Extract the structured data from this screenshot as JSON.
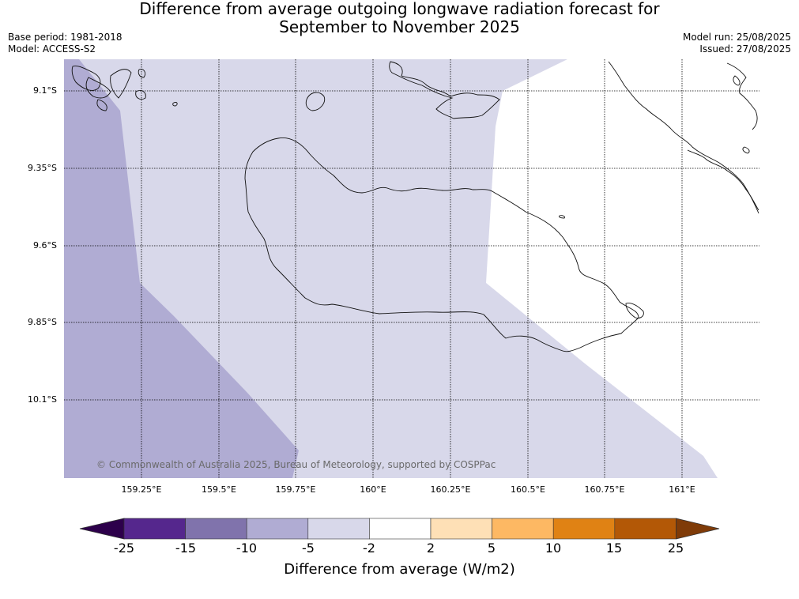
{
  "title": {
    "line1": "Difference from average outgoing longwave radiation forecast for",
    "line2": "September to November 2025"
  },
  "meta": {
    "base_period": "Base period: 1981-2018",
    "model": "Model: ACCESS-S2",
    "model_run": "Model run: 25/08/2025",
    "issued": "Issued: 27/08/2025"
  },
  "map": {
    "lat_labels": [
      "9.1°S",
      "9.35°S",
      "9.6°S",
      "9.85°S",
      "10.1°S"
    ],
    "lon_labels": [
      "159.25°E",
      "159.5°E",
      "159.75°E",
      "160°E",
      "160.25°E",
      "160.5°E",
      "160.75°E",
      "161°E"
    ],
    "copyright": "© Commonwealth of Australia 2025, Bureau of Meteorology, supported by COSPPac",
    "fill_colors": {
      "neg10_neg5": "#b0acd3",
      "neg5_neg2": "#d8d8ea",
      "neg2_2": "#ffffff"
    }
  },
  "colorbar": {
    "label": "Difference from average (W/m2)",
    "ticks": [
      "-25",
      "-15",
      "-10",
      "-5",
      "-2",
      "2",
      "5",
      "10",
      "15",
      "25"
    ],
    "colors": [
      "#55278d",
      "#8073ac",
      "#b0acd3",
      "#d8d8ea",
      "#ffffff",
      "#fee0b6",
      "#fdb863",
      "#e08214",
      "#b35806"
    ],
    "under_color": "#2d004b",
    "over_color": "#7f3b08"
  }
}
